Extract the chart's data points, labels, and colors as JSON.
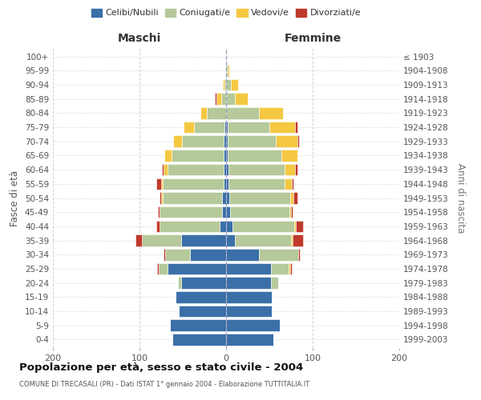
{
  "age_groups": [
    "0-4",
    "5-9",
    "10-14",
    "15-19",
    "20-24",
    "25-29",
    "30-34",
    "35-39",
    "40-44",
    "45-49",
    "50-54",
    "55-59",
    "60-64",
    "65-69",
    "70-74",
    "75-79",
    "80-84",
    "85-89",
    "90-94",
    "95-99",
    "100+"
  ],
  "birth_years": [
    "1999-2003",
    "1994-1998",
    "1989-1993",
    "1984-1988",
    "1979-1983",
    "1974-1978",
    "1969-1973",
    "1964-1968",
    "1959-1963",
    "1954-1958",
    "1949-1953",
    "1944-1948",
    "1939-1943",
    "1934-1938",
    "1929-1933",
    "1924-1928",
    "1919-1923",
    "1914-1918",
    "1909-1913",
    "1904-1908",
    "≤ 1903"
  ],
  "males": {
    "celibi": [
      62,
      65,
      55,
      58,
      52,
      68,
      42,
      52,
      7,
      5,
      5,
      3,
      3,
      3,
      3,
      2,
      0,
      0,
      0,
      0,
      0
    ],
    "coniugati": [
      0,
      0,
      0,
      0,
      4,
      10,
      28,
      45,
      70,
      72,
      68,
      70,
      65,
      60,
      48,
      35,
      22,
      6,
      2,
      1,
      0
    ],
    "vedovi": [
      0,
      0,
      0,
      0,
      0,
      0,
      0,
      0,
      0,
      0,
      2,
      2,
      4,
      8,
      10,
      12,
      8,
      5,
      2,
      0,
      0
    ],
    "divorziati": [
      0,
      0,
      0,
      0,
      0,
      2,
      2,
      8,
      4,
      2,
      2,
      6,
      2,
      0,
      0,
      0,
      0,
      2,
      0,
      0,
      0
    ]
  },
  "females": {
    "nubili": [
      55,
      62,
      53,
      53,
      52,
      52,
      38,
      10,
      7,
      5,
      4,
      3,
      3,
      2,
      2,
      2,
      0,
      0,
      0,
      0,
      0
    ],
    "coniugate": [
      0,
      0,
      0,
      0,
      8,
      20,
      45,
      65,
      72,
      68,
      70,
      65,
      65,
      62,
      55,
      48,
      38,
      10,
      6,
      2,
      0
    ],
    "vedove": [
      0,
      0,
      0,
      0,
      0,
      2,
      0,
      2,
      2,
      2,
      4,
      8,
      12,
      18,
      25,
      30,
      28,
      15,
      8,
      2,
      0
    ],
    "divorziate": [
      0,
      0,
      0,
      0,
      0,
      2,
      2,
      12,
      8,
      2,
      4,
      2,
      2,
      0,
      2,
      2,
      0,
      0,
      0,
      0,
      0
    ]
  },
  "colors": {
    "celibi": "#3a6fa8",
    "coniugati": "#b5c99a",
    "vedovi": "#f5c842",
    "divorziati": "#c0392b"
  },
  "title": "Popolazione per età, sesso e stato civile - 2004",
  "subtitle": "COMUNE DI TRECASALI (PR) - Dati ISTAT 1° gennaio 2004 - Elaborazione TUTTITALIA.IT",
  "xlabel_left": "Maschi",
  "xlabel_right": "Femmine",
  "ylabel_left": "Fasce di età",
  "ylabel_right": "Anni di nascita",
  "xlim": 200,
  "bg_color": "#ffffff",
  "grid_color": "#cccccc"
}
